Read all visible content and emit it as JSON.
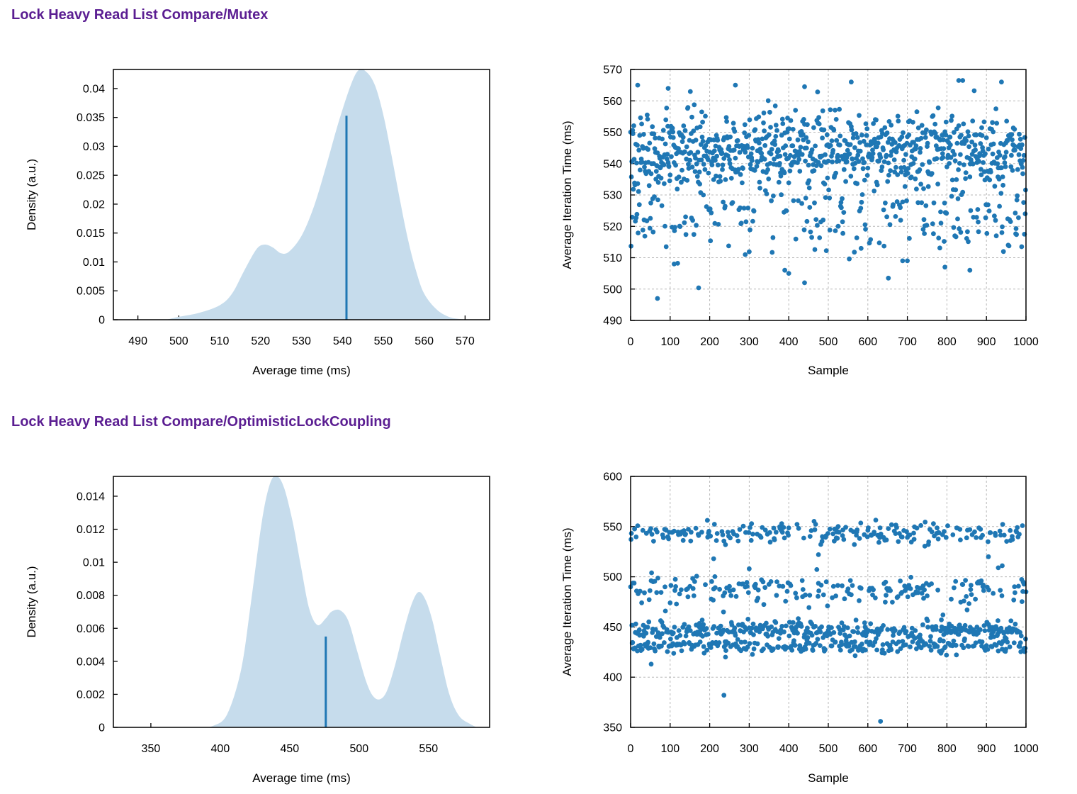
{
  "sections": [
    {
      "title": "Lock Heavy Read List Compare/Mutex",
      "pdf": {
        "xlabel": "Average time (ms)",
        "ylabel": "Density (a.u.)",
        "xticks": [
          "490",
          "500",
          "510",
          "520",
          "530",
          "540",
          "550",
          "560",
          "570"
        ],
        "yticks": [
          "0",
          "0.005",
          "0.01",
          "0.015",
          "0.02",
          "0.025",
          "0.03",
          "0.035",
          "0.04"
        ]
      },
      "scatter": {
        "xlabel": "Sample",
        "ylabel": "Average Iteration Time (ms)",
        "xticks": [
          "0",
          "100",
          "200",
          "300",
          "400",
          "500",
          "600",
          "700",
          "800",
          "900",
          "1000"
        ],
        "yticks": [
          "490",
          "500",
          "510",
          "520",
          "530",
          "540",
          "550",
          "560",
          "570"
        ]
      }
    },
    {
      "title": "Lock Heavy Read List Compare/OptimisticLockCoupling",
      "pdf": {
        "xlabel": "Average time (ms)",
        "ylabel": "Density (a.u.)",
        "xticks": [
          "350",
          "400",
          "450",
          "500",
          "550"
        ],
        "yticks": [
          "0",
          "0.002",
          "0.004",
          "0.006",
          "0.008",
          "0.01",
          "0.012",
          "0.014"
        ]
      },
      "scatter": {
        "xlabel": "Sample",
        "ylabel": "Average Iteration Time (ms)",
        "xticks": [
          "0",
          "100",
          "200",
          "300",
          "400",
          "500",
          "600",
          "700",
          "800",
          "900",
          "1000"
        ],
        "yticks": [
          "350",
          "400",
          "450",
          "500",
          "550",
          "600"
        ]
      }
    }
  ],
  "chart_data": [
    {
      "type": "area",
      "title": "Lock Heavy Read List Compare/Mutex",
      "xlabel": "Average time (ms)",
      "ylabel": "Density (a.u.)",
      "xlim": [
        484,
        576
      ],
      "ylim": [
        0,
        0.0433
      ],
      "grid": false,
      "fill_color": "#c6dcec",
      "x": [
        497,
        500,
        505,
        510,
        513,
        516,
        519,
        521,
        523,
        525,
        527,
        530,
        533,
        536,
        539,
        542,
        544,
        546,
        548,
        550,
        552,
        554,
        556,
        558,
        560,
        563,
        566,
        569,
        572
      ],
      "density": [
        0.0,
        0.0005,
        0.0012,
        0.0025,
        0.0045,
        0.0085,
        0.0122,
        0.013,
        0.0125,
        0.0115,
        0.0118,
        0.0145,
        0.0195,
        0.0265,
        0.034,
        0.0405,
        0.0432,
        0.0428,
        0.0405,
        0.0355,
        0.0285,
        0.021,
        0.014,
        0.0085,
        0.0045,
        0.0018,
        0.0005,
        0.0001,
        0.0
      ],
      "mean_line": {
        "x": 541,
        "y": 0.0353,
        "color": "#1f77b4"
      }
    },
    {
      "type": "scatter",
      "title": "Lock Heavy Read List Compare/Mutex",
      "xlabel": "Sample",
      "ylabel": "Average Iteration Time (ms)",
      "xlim": [
        0,
        1000
      ],
      "ylim": [
        490,
        570
      ],
      "grid": true,
      "point_color": "#1f77b4",
      "n_samples": 1000,
      "distribution": {
        "main_band": {
          "center": 544,
          "spread": 6,
          "fraction": 0.78
        },
        "lower_band": {
          "center": 522,
          "spread": 6,
          "fraction": 0.22
        }
      },
      "highlighted_points": [
        {
          "x": 18,
          "y": 565
        },
        {
          "x": 95,
          "y": 564
        },
        {
          "x": 265,
          "y": 565
        },
        {
          "x": 440,
          "y": 564.5
        },
        {
          "x": 558,
          "y": 566
        },
        {
          "x": 830,
          "y": 566.5
        },
        {
          "x": 840,
          "y": 566.5
        },
        {
          "x": 938,
          "y": 566
        },
        {
          "x": 68,
          "y": 497
        },
        {
          "x": 440,
          "y": 502
        },
        {
          "x": 390,
          "y": 506
        },
        {
          "x": 400,
          "y": 505
        },
        {
          "x": 652,
          "y": 503.5
        },
        {
          "x": 858,
          "y": 506
        },
        {
          "x": 795,
          "y": 507
        },
        {
          "x": 110,
          "y": 508
        },
        {
          "x": 290,
          "y": 511
        },
        {
          "x": 688,
          "y": 509
        },
        {
          "x": 700,
          "y": 509
        }
      ]
    },
    {
      "type": "area",
      "title": "Lock Heavy Read List Compare/OptimisticLockCoupling",
      "xlabel": "Average time (ms)",
      "ylabel": "Density (a.u.)",
      "xlim": [
        323,
        594
      ],
      "ylim": [
        0,
        0.0152
      ],
      "grid": false,
      "fill_color": "#c6dcec",
      "x": [
        385,
        395,
        405,
        415,
        422,
        430,
        436,
        441,
        446,
        452,
        458,
        464,
        470,
        476,
        480,
        486,
        492,
        498,
        505,
        510,
        515,
        520,
        526,
        532,
        538,
        543,
        548,
        553,
        558,
        565,
        572,
        580,
        585
      ],
      "density": [
        0.0,
        0.0001,
        0.0008,
        0.0035,
        0.0075,
        0.0125,
        0.0148,
        0.0152,
        0.0145,
        0.0125,
        0.0098,
        0.0072,
        0.0062,
        0.0066,
        0.007,
        0.0071,
        0.0065,
        0.0048,
        0.0028,
        0.0019,
        0.0017,
        0.0022,
        0.0038,
        0.0058,
        0.0075,
        0.0082,
        0.0077,
        0.0064,
        0.0045,
        0.002,
        0.0007,
        0.0002,
        0.0
      ],
      "mean_line": {
        "x": 476,
        "y": 0.0055,
        "color": "#1f77b4"
      }
    },
    {
      "type": "scatter",
      "title": "Lock Heavy Read List Compare/OptimisticLockCoupling",
      "xlabel": "Sample",
      "ylabel": "Average Iteration Time (ms)",
      "xlim": [
        0,
        1000
      ],
      "ylim": [
        350,
        600
      ],
      "grid": true,
      "point_color": "#1f77b4",
      "n_samples": 1000,
      "distribution": {
        "bands": [
          {
            "center": 447,
            "spread": 4,
            "fraction": 0.34
          },
          {
            "center": 431,
            "spread": 4,
            "fraction": 0.26
          },
          {
            "center": 543,
            "spread": 5,
            "fraction": 0.2
          },
          {
            "center": 487,
            "spread": 7,
            "fraction": 0.2
          }
        ]
      },
      "highlighted_points": [
        {
          "x": 236,
          "y": 382
        },
        {
          "x": 632,
          "y": 356
        },
        {
          "x": 52,
          "y": 413
        },
        {
          "x": 240,
          "y": 420
        },
        {
          "x": 240,
          "y": 532
        },
        {
          "x": 210,
          "y": 518
        },
        {
          "x": 300,
          "y": 508
        },
        {
          "x": 475,
          "y": 522
        },
        {
          "x": 905,
          "y": 520
        },
        {
          "x": 930,
          "y": 509
        },
        {
          "x": 940,
          "y": 511
        },
        {
          "x": 235,
          "y": 465
        },
        {
          "x": 790,
          "y": 462
        },
        {
          "x": 1000,
          "y": 485
        }
      ]
    }
  ]
}
